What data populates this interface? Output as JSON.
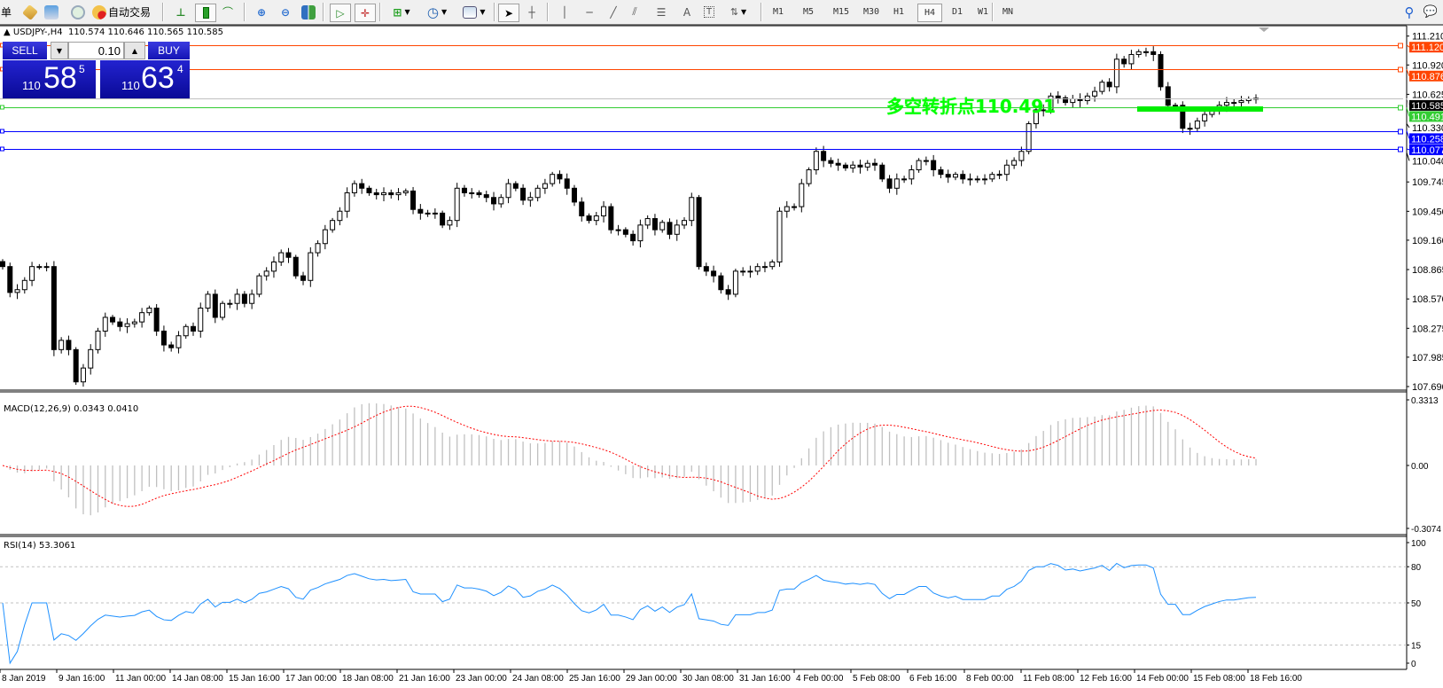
{
  "toolbar": {
    "left_text": "单",
    "autotrade_label": "自动交易",
    "timeframes": [
      "M1",
      "M5",
      "M15",
      "M30",
      "H1",
      "H4",
      "D1",
      "W1",
      "MN"
    ],
    "active_timeframe": "H4"
  },
  "chart": {
    "symbol": "USDJPY-,H4",
    "open": "110.574",
    "high": "110.646",
    "low": "110.565",
    "close": "110.585"
  },
  "trade_panel": {
    "sell_label": "SELL",
    "buy_label": "BUY",
    "lot": "0.10",
    "sell_price": {
      "prefix": "110",
      "main": "58",
      "sup": "5"
    },
    "buy_price": {
      "prefix": "110",
      "main": "63",
      "sup": "4"
    }
  },
  "price_axis": {
    "ticks": [
      "111.210",
      "110.920",
      "110.625",
      "110.330",
      "110.040",
      "109.745",
      "109.450",
      "109.160",
      "108.865",
      "108.570",
      "108.275",
      "107.985",
      "107.690"
    ]
  },
  "levels": [
    {
      "price": "111.120",
      "color": "#ff4500",
      "text_color": "#ffffff"
    },
    {
      "price": "110.876",
      "color": "#ff4500",
      "text_color": "#ffffff"
    },
    {
      "price": "110.585",
      "color": "#000000",
      "line_color": "#c0c0c0",
      "text_color": "#ffffff"
    },
    {
      "price": "110.491",
      "color": "#32cd32",
      "text_color": "#ffffff"
    },
    {
      "price": "110.258",
      "color": "#0000ff",
      "text_color": "#ffffff"
    },
    {
      "price": "110.077",
      "color": "#0000ff",
      "text_color": "#ffffff"
    }
  ],
  "annotation": {
    "text": "多空转折点110.491",
    "color": "#00ff00"
  },
  "macd": {
    "label": "MACD(12,26,9) 0.0343 0.0410",
    "max": "0.3313",
    "zero": "0.00",
    "min": "-0.3074",
    "hist_color": "#c0c0c0",
    "signal_color": "#ff0000"
  },
  "rsi": {
    "label": "RSI(14) 53.3061",
    "scale": [
      "100",
      "80",
      "50",
      "15",
      "0"
    ],
    "line_color": "#1e90ff"
  },
  "time_axis": [
    "8 Jan 2019",
    "9 Jan 16:00",
    "11 Jan 00:00",
    "14 Jan 08:00",
    "15 Jan 16:00",
    "17 Jan 00:00",
    "18 Jan 08:00",
    "21 Jan 16:00",
    "23 Jan 00:00",
    "24 Jan 08:00",
    "25 Jan 16:00",
    "29 Jan 00:00",
    "30 Jan 08:00",
    "31 Jan 16:00",
    "4 Feb 00:00",
    "5 Feb 08:00",
    "6 Feb 16:00",
    "8 Feb 00:00",
    "11 Feb 08:00",
    "12 Feb 16:00",
    "14 Feb 00:00",
    "15 Feb 08:00",
    "18 Feb 16:00"
  ],
  "chart_data": {
    "type": "candlestick",
    "closes": [
      108.895,
      108.635,
      108.663,
      108.756,
      108.895,
      108.895,
      108.895,
      108.061,
      108.154,
      108.061,
      107.737,
      107.876,
      108.061,
      108.247,
      108.385,
      108.339,
      108.293,
      108.321,
      108.339,
      108.432,
      108.478,
      108.247,
      108.108,
      108.08,
      108.2,
      108.293,
      108.247,
      108.478,
      108.617,
      108.385,
      108.525,
      108.525,
      108.617,
      108.525,
      108.617,
      108.802,
      108.849,
      108.941,
      109.034,
      108.988,
      108.802,
      108.756,
      109.034,
      109.126,
      109.265,
      109.358,
      109.451,
      109.636,
      109.728,
      109.682,
      109.636,
      109.617,
      109.636,
      109.617,
      109.636,
      109.654,
      109.469,
      109.432,
      109.432,
      109.432,
      109.312,
      109.358,
      109.682,
      109.636,
      109.636,
      109.617,
      109.589,
      109.525,
      109.589,
      109.728,
      109.682,
      109.562,
      109.589,
      109.682,
      109.728,
      109.821,
      109.775,
      109.682,
      109.543,
      109.404,
      109.358,
      109.404,
      109.497,
      109.265,
      109.265,
      109.219,
      109.154,
      109.312,
      109.377,
      109.265,
      109.339,
      109.219,
      109.312,
      109.358,
      109.589,
      108.895,
      108.849,
      108.802,
      108.663,
      108.617,
      108.849,
      108.849,
      108.849,
      108.895,
      108.895,
      108.941,
      109.451,
      109.497,
      109.497,
      109.728,
      109.867,
      110.052,
      109.96,
      109.932,
      109.914,
      109.886,
      109.914,
      109.895,
      109.932,
      109.914,
      109.775,
      109.682,
      109.775,
      109.775,
      109.867,
      109.96,
      109.96,
      109.867,
      109.821,
      109.793,
      109.821,
      109.775,
      109.775,
      109.775,
      109.775,
      109.821,
      109.821,
      109.914,
      109.96,
      110.052,
      110.33,
      110.469,
      110.469,
      110.608,
      110.59,
      110.543,
      110.58,
      110.562,
      110.608,
      110.654,
      110.747,
      110.701,
      110.978,
      110.932,
      111.025,
      111.053,
      111.053,
      111.025,
      110.701,
      110.515,
      110.515,
      110.284,
      110.284,
      110.358,
      110.423,
      110.469,
      110.515,
      110.543,
      110.543,
      110.562,
      110.58,
      110.585
    ],
    "ylim": [
      107.69,
      111.21
    ]
  }
}
